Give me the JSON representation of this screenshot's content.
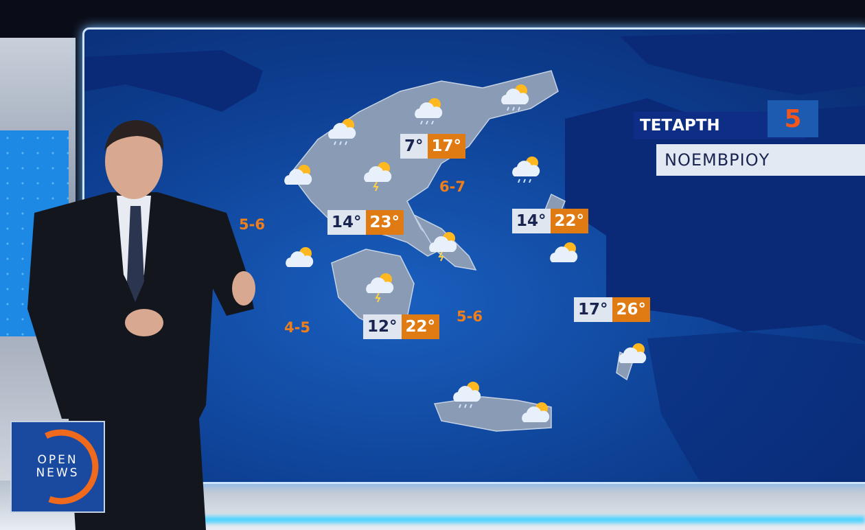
{
  "date_panel": {
    "weekday": "ΤΕΤΑΡΤΗ",
    "day": "5",
    "month": "ΝΟΕΜΒΡΙΟΥ"
  },
  "temperatures": [
    {
      "min": "7°",
      "max": "17°"
    },
    {
      "min": "14°",
      "max": "23°"
    },
    {
      "min": "14°",
      "max": "22°"
    },
    {
      "min": "12°",
      "max": "22°"
    },
    {
      "min": "17°",
      "max": "26°"
    }
  ],
  "winds": [
    "6-7",
    "5-6",
    "4-5",
    "5-6"
  ],
  "icons": [
    "cloud-sun-rain",
    "cloud-sun",
    "cloud-sun-lightning"
  ],
  "logo": {
    "line1": "OPEN",
    "line2": "NEWS"
  },
  "colors": {
    "sea": "#0d3f92",
    "land": "#8a9bb5",
    "max_temp": "#e07a12",
    "wind": "#f07f1a",
    "accent": "#f2561d"
  }
}
